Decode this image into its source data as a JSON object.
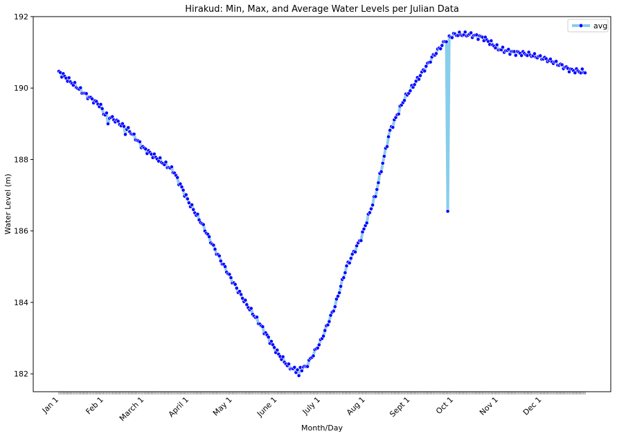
{
  "chart_data": {
    "type": "line",
    "title": "Hirakud: Min, Max, and Average Water Levels per Julian Data",
    "xlabel": "Month/Day",
    "ylabel": "Water Level (m)",
    "x_range": [
      1,
      365
    ],
    "ylim": [
      181.5,
      192.0
    ],
    "yticks": [
      182,
      184,
      186,
      188,
      190,
      192
    ],
    "xticks": [
      {
        "day": 1,
        "label": "Jan 1"
      },
      {
        "day": 32,
        "label": "Feb 1"
      },
      {
        "day": 60,
        "label": "March 1"
      },
      {
        "day": 91,
        "label": "April 1"
      },
      {
        "day": 121,
        "label": "May 1"
      },
      {
        "day": 152,
        "label": "June 1"
      },
      {
        "day": 182,
        "label": "July 1"
      },
      {
        "day": 213,
        "label": "Aug 1"
      },
      {
        "day": 244,
        "label": "Sept 1"
      },
      {
        "day": 274,
        "label": "Oct 1"
      },
      {
        "day": 305,
        "label": "Nov 1"
      },
      {
        "day": 335,
        "label": "Dec 1"
      }
    ],
    "grid": false,
    "legend_position": "top-right",
    "series": [
      {
        "name": "avg",
        "line_color": "#87ceeb",
        "marker_color": "#0000ff",
        "marker_edge_color": "#ffffff",
        "anchors": [
          [
            1,
            190.45
          ],
          [
            10,
            190.15
          ],
          [
            20,
            189.8
          ],
          [
            30,
            189.5
          ],
          [
            32,
            189.3
          ],
          [
            40,
            189.1
          ],
          [
            50,
            188.8
          ],
          [
            60,
            188.3
          ],
          [
            70,
            188.0
          ],
          [
            80,
            187.7
          ],
          [
            91,
            186.8
          ],
          [
            100,
            186.2
          ],
          [
            110,
            185.4
          ],
          [
            121,
            184.6
          ],
          [
            130,
            184.0
          ],
          [
            140,
            183.4
          ],
          [
            152,
            182.6
          ],
          [
            160,
            182.2
          ],
          [
            165,
            182.1
          ],
          [
            172,
            182.2
          ],
          [
            182,
            182.9
          ],
          [
            192,
            183.9
          ],
          [
            200,
            185.0
          ],
          [
            210,
            185.8
          ],
          [
            220,
            187.0
          ],
          [
            230,
            188.8
          ],
          [
            240,
            189.7
          ],
          [
            250,
            190.3
          ],
          [
            260,
            190.9
          ],
          [
            270,
            191.4
          ],
          [
            275,
            191.5
          ],
          [
            285,
            191.5
          ],
          [
            295,
            191.4
          ],
          [
            305,
            191.1
          ],
          [
            315,
            191.0
          ],
          [
            325,
            190.95
          ],
          [
            335,
            190.85
          ],
          [
            345,
            190.7
          ],
          [
            355,
            190.5
          ],
          [
            365,
            190.45
          ]
        ],
        "outliers": [
          {
            "day": 35,
            "value": 189.0
          },
          {
            "day": 47,
            "value": 188.7
          },
          {
            "day": 167,
            "value": 181.95
          },
          {
            "day": 270,
            "value": 186.55
          }
        ]
      }
    ]
  }
}
